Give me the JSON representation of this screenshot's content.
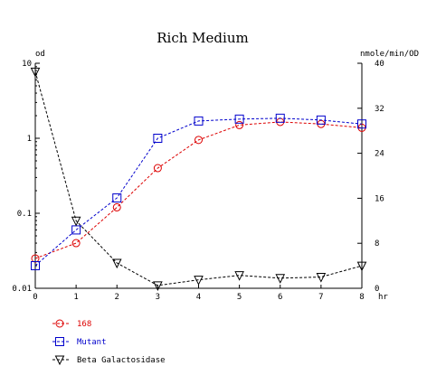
{
  "chart_data": {
    "type": "line",
    "title": "Rich Medium",
    "x": [
      0,
      1,
      2,
      3,
      4,
      5,
      6,
      7,
      8
    ],
    "xlim": [
      0,
      8
    ],
    "xticks": [
      "0",
      "1",
      "2",
      "3",
      "4",
      "5",
      "6",
      "7",
      "8"
    ],
    "xunit": "hr",
    "left_axis": {
      "label": "od",
      "scale": "log",
      "lim": [
        0.01,
        10
      ],
      "ticks": [
        {
          "value": 10,
          "label": "10"
        },
        {
          "value": 1,
          "label": "1"
        },
        {
          "value": 0.1,
          "label": "0.1"
        },
        {
          "value": 0.01,
          "label": "0.01"
        }
      ]
    },
    "right_axis": {
      "label": "nmole/min/OD",
      "scale": "linear",
      "lim": [
        0,
        40
      ],
      "ticks": [
        {
          "value": 40,
          "label": "40"
        },
        {
          "value": 32,
          "label": "32"
        },
        {
          "value": 24,
          "label": "24"
        },
        {
          "value": 16,
          "label": "16"
        },
        {
          "value": 8,
          "label": "8"
        },
        {
          "value": 0,
          "label": "0"
        }
      ]
    },
    "series": [
      {
        "name": "168",
        "axis": "left",
        "marker": "circle",
        "color": "#dd0000",
        "values": [
          0.025,
          0.04,
          0.12,
          0.4,
          0.95,
          1.5,
          1.65,
          1.55,
          1.38
        ]
      },
      {
        "name": "Mutant",
        "axis": "left",
        "marker": "square",
        "color": "#0000cc",
        "values": [
          0.02,
          0.06,
          0.16,
          1.0,
          1.7,
          1.8,
          1.85,
          1.75,
          1.55
        ]
      },
      {
        "name": "Beta Galactosidase",
        "axis": "right",
        "marker": "triangle-down",
        "color": "#000000",
        "values": [
          38.5,
          12,
          4.5,
          0.5,
          1.5,
          2.3,
          1.8,
          2.0,
          4.0
        ]
      }
    ]
  }
}
